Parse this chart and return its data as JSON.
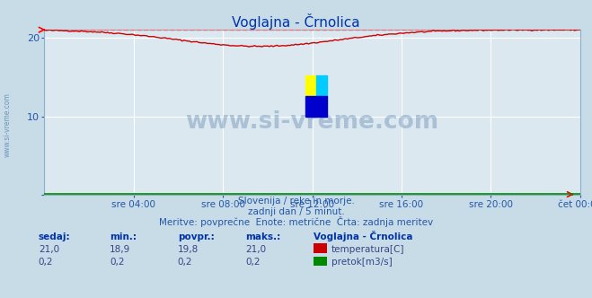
{
  "title": "Voglajna - Črnolica",
  "bg_color": "#c8dce8",
  "plot_bg_color": "#dce8f0",
  "grid_color_white": "#ffffff",
  "grid_color_red": "#ff8888",
  "xlim": [
    0,
    288
  ],
  "ylim": [
    0,
    21.0
  ],
  "yticks": [
    0,
    10,
    20
  ],
  "xtick_labels": [
    "sre 04:00",
    "sre 08:00",
    "sre 12:00",
    "sre 16:00",
    "sre 20:00",
    "čet 00:00"
  ],
  "xtick_positions": [
    48,
    96,
    144,
    192,
    240,
    288
  ],
  "temp_color": "#cc0000",
  "flow_color": "#008800",
  "max_line_color": "#ff6666",
  "max_value": 21.0,
  "temp_min": 18.9,
  "temp_avg": 19.8,
  "temp_max": 21.0,
  "flow_sedaj": 0.2,
  "flow_min": 0.2,
  "flow_avg": 0.2,
  "flow_max": 0.2,
  "watermark": "www.si-vreme.com",
  "subtitle1": "Slovenija / reke in morje.",
  "subtitle2": "zadnji dan / 5 minut.",
  "subtitle3": "Meritve: povprečne  Enote: metrične  Črta: zadnja meritev",
  "legend_title": "Voglajna - Črnolica",
  "label_temp": "temperatura[C]",
  "label_flow": "pretok[m3/s]",
  "sedaj_label": "sedaj:",
  "min_label": "min.:",
  "povpr_label": "povpr.:",
  "maks_label": "maks.:",
  "temp_sedaj": 21.0,
  "sidebar_text": "www.si-vreme.com"
}
